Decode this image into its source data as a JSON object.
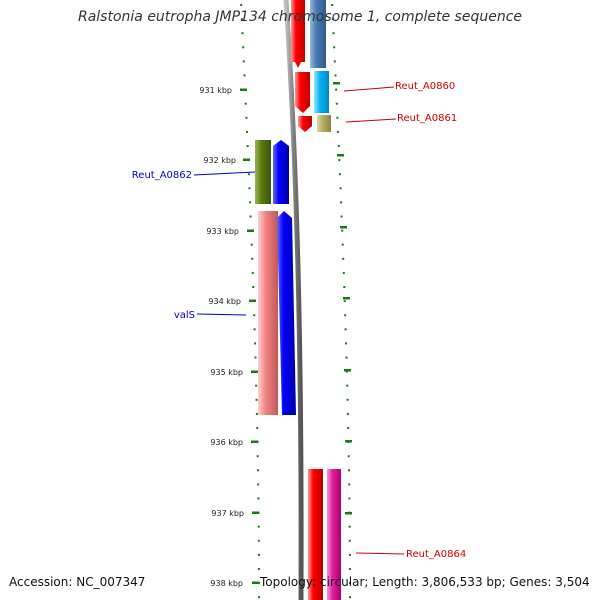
{
  "title": "Ralstonia eutropha JMP134 chromosome 1, complete sequence",
  "ruler": {
    "ticks": [
      {
        "label": "931 kbp"
      },
      {
        "label": "932 kbp"
      },
      {
        "label": "933 kbp"
      },
      {
        "label": "934 kbp"
      },
      {
        "label": "935 kbp"
      },
      {
        "label": "936 kbp"
      },
      {
        "label": "937 kbp"
      },
      {
        "label": "938 kbp"
      }
    ],
    "tick_color": "#1a7a1a"
  },
  "backbone_color": "#808080",
  "genes": [
    {
      "id": "Reut_A0860",
      "color": "#00b4f0",
      "labeled": true,
      "label_color": "#cc0000"
    },
    {
      "id": "Reut_A0861",
      "color": "#b8b060",
      "labeled": true,
      "label_color": "#cc0000"
    },
    {
      "id": "Reut_A0862",
      "color": "#5a7a10",
      "labeled": true,
      "label_color": "#0000cc"
    },
    {
      "id": "valS",
      "color": "#f08080",
      "labeled": true,
      "label_color": "#0000cc"
    },
    {
      "id": "Reut_A0864",
      "color": "#e0209a",
      "labeled": true,
      "label_color": "#cc0000"
    }
  ],
  "features": {
    "top_blue_gene_color": "#4a7ab0",
    "red_cds_color": "#ee0000",
    "blue_cds_color": "#0000ee"
  },
  "footer": {
    "accession": "Accession: NC_007347",
    "topology": "Topology: circular; Length: 3,806,533 bp; Genes: 3,504"
  }
}
